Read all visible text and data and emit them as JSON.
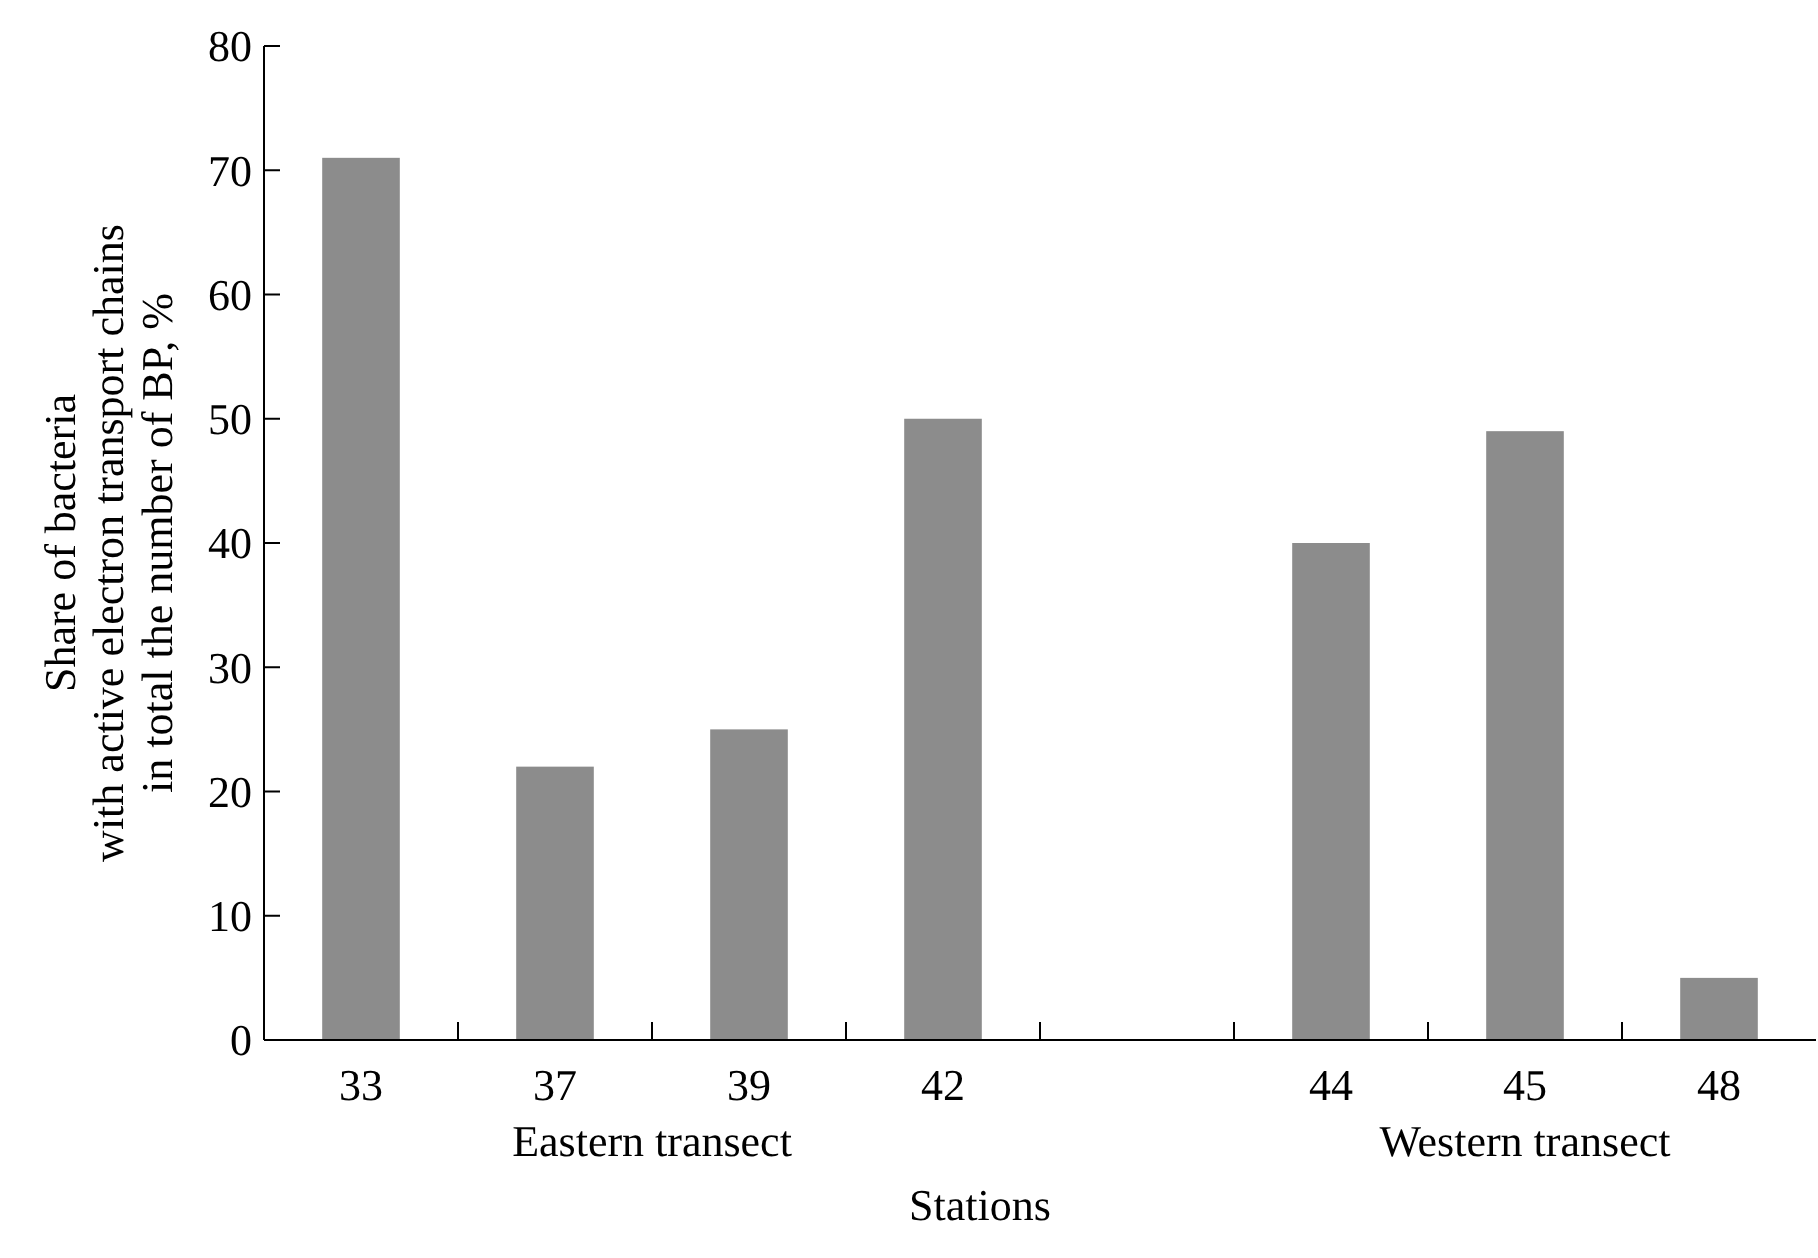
{
  "chart_data": {
    "type": "bar",
    "xlabel": "Stations",
    "ylabel": "Share of bacteria\nwith active electron transport chains\nin total the number of BP, %",
    "categories": [
      "33",
      "37",
      "39",
      "42",
      null,
      "44",
      "45",
      "48"
    ],
    "values": [
      71,
      22,
      25,
      50,
      null,
      40,
      49,
      5
    ],
    "color": "#8c8c8c",
    "ylim": [
      0,
      80
    ],
    "yticks": [
      0,
      10,
      20,
      30,
      40,
      50,
      60,
      70,
      80
    ],
    "grid": false,
    "annotations": [
      "Eastern transect",
      "Western transect"
    ]
  }
}
